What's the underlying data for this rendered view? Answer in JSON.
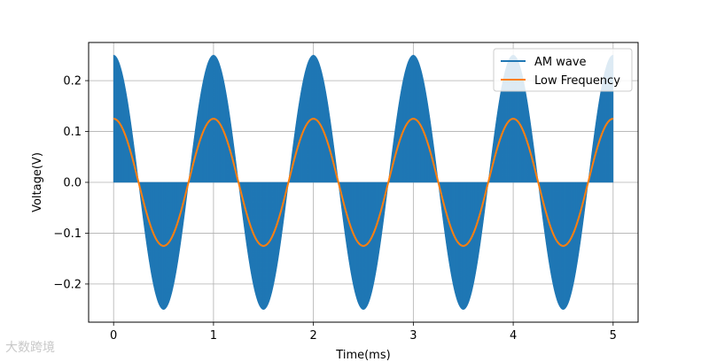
{
  "chart_data": {
    "type": "line",
    "title": "",
    "xlabel": "Time(ms)",
    "ylabel": "Voltage(V)",
    "xlim": [
      -0.25,
      5.25
    ],
    "ylim": [
      -0.275,
      0.275
    ],
    "x_ticks": [
      0,
      1,
      2,
      3,
      4,
      5
    ],
    "x_tick_labels": [
      "0",
      "1",
      "2",
      "3",
      "4",
      "5"
    ],
    "y_ticks": [
      -0.2,
      -0.1,
      0.0,
      0.1,
      0.2
    ],
    "y_tick_labels": [
      "−0.2",
      "−0.1",
      "0.0",
      "0.1",
      "0.2"
    ],
    "grid": true,
    "legend_position": "top-right",
    "series": [
      {
        "name": "AM wave",
        "color": "#1f77b4",
        "kind": "amplitude-modulated carrier",
        "envelope_amplitude_v": 0.25,
        "envelope_frequency_per_ms": 1.0,
        "carrier_density": "dense"
      },
      {
        "name": "Low Frequency",
        "color": "#ff7f0e",
        "kind": "cosine",
        "amplitude_v": 0.125,
        "frequency_per_ms": 1.0,
        "x_range": [
          0,
          5
        ]
      }
    ]
  },
  "watermark": {
    "text": "大数跨境"
  }
}
